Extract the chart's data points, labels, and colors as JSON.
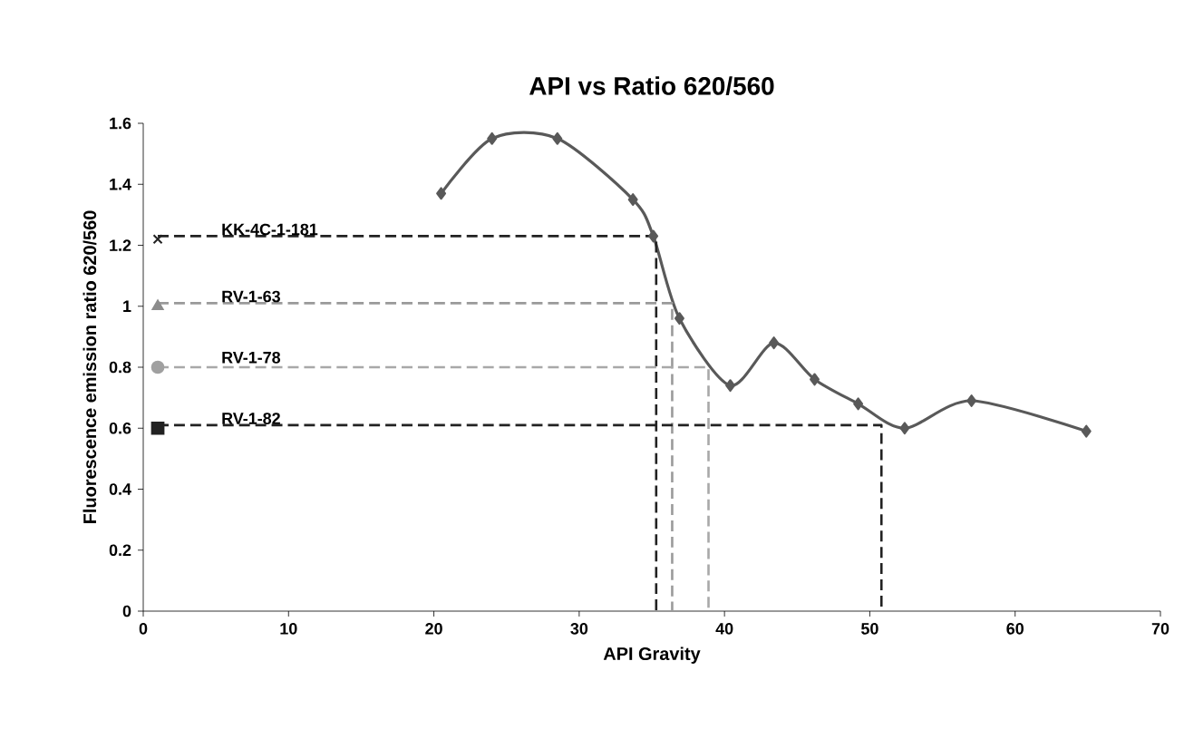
{
  "chart_data": {
    "type": "line",
    "title": "API vs Ratio 620/560",
    "xlabel": "API Gravity",
    "ylabel": "Fluorescence emission ratio 620/560",
    "xlim": [
      0,
      70
    ],
    "xticks": [
      0,
      10,
      20,
      30,
      40,
      50,
      60,
      70
    ],
    "ylim": [
      0,
      1.6
    ],
    "yticks": [
      0,
      0.2,
      0.4,
      0.6,
      0.8,
      1,
      1.2,
      1.4,
      1.6
    ],
    "grid": false,
    "legend": false,
    "series": [
      {
        "color": "#595959",
        "marker": "diamond",
        "line_style": "solid",
        "x": [
          20.5,
          24,
          28.5,
          33.7,
          35.1,
          36.9,
          40.4,
          43.4,
          46.2,
          49.2,
          52.4,
          57.0,
          64.9
        ],
        "values": [
          1.37,
          1.55,
          1.55,
          1.35,
          1.23,
          0.96,
          0.74,
          0.88,
          0.76,
          0.68,
          0.6,
          0.69,
          0.59
        ]
      },
      {
        "type": "line",
        "color": "#222222",
        "marker": "none",
        "line_style": "dashed",
        "x": [
          1,
          35.3,
          35.3
        ],
        "values": [
          1.23,
          1.23,
          0
        ]
      },
      {
        "type": "line",
        "color": "#9a9a9a",
        "marker": "none",
        "line_style": "dashed",
        "x": [
          1,
          36.4,
          36.4
        ],
        "values": [
          1.01,
          1.01,
          0
        ]
      },
      {
        "type": "line",
        "color": "#a8a8a8",
        "marker": "none",
        "line_style": "dashed",
        "x": [
          1,
          38.9,
          38.9
        ],
        "values": [
          0.8,
          0.8,
          0
        ]
      },
      {
        "type": "line",
        "color": "#222222",
        "marker": "none",
        "line_style": "dashed",
        "x": [
          1,
          50.8,
          50.8
        ],
        "values": [
          0.61,
          0.61,
          0
        ]
      },
      {
        "type": "scatter",
        "name": "KK-4C-1-181",
        "color": "#222222",
        "marker": "cross",
        "x": [
          1
        ],
        "values": [
          1.22
        ]
      },
      {
        "type": "scatter",
        "name": "RV-1-63",
        "color": "#8c8c8c",
        "marker": "triangle",
        "x": [
          1
        ],
        "values": [
          1.0
        ]
      },
      {
        "type": "scatter",
        "name": "RV-1-78",
        "color": "#a0a0a0",
        "marker": "circle",
        "x": [
          1
        ],
        "values": [
          0.8
        ]
      },
      {
        "type": "scatter",
        "name": "RV-1-82",
        "color": "#222222",
        "marker": "square",
        "x": [
          1
        ],
        "values": [
          0.6
        ]
      }
    ]
  }
}
